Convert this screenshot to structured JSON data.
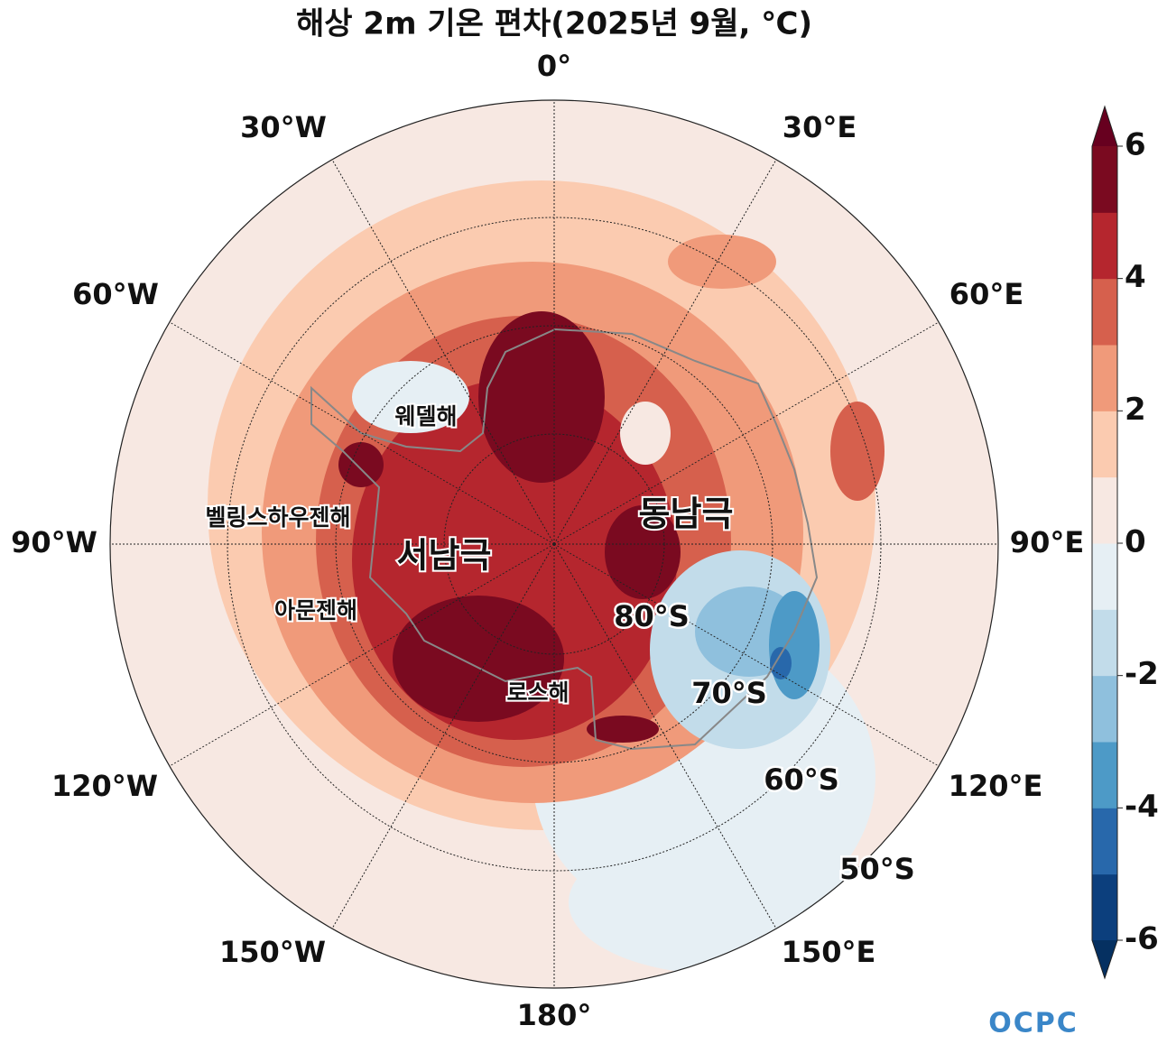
{
  "chart_data": {
    "type": "polar-contour",
    "title": "해상 2m 기온 편차(2025년 9월, ℃)",
    "lon_labels": [
      "0°",
      "30°E",
      "60°E",
      "90°E",
      "120°E",
      "150°E",
      "180°",
      "150°W",
      "120°W",
      "90°W",
      "60°W",
      "30°W"
    ],
    "lat_labels": [
      "80°S",
      "70°S",
      "60°S",
      "50°S"
    ],
    "region_labels": [
      "웨델해",
      "벨링스하우젠해",
      "서남극",
      "아문젠해",
      "로스해",
      "동남극"
    ],
    "colorbar": {
      "levels": [
        -6,
        -5,
        -4,
        -3,
        -2,
        -1,
        0,
        1,
        2,
        3,
        4,
        5,
        6
      ],
      "colors": [
        "#0c3f7d",
        "#2868ab",
        "#4d9ac7",
        "#8fc0dd",
        "#c2dcea",
        "#e6eff4",
        "#f7e8e2",
        "#fbcbb0",
        "#f09a7a",
        "#d6604d",
        "#b5262e",
        "#7a0a20"
      ],
      "extend_colors": [
        "#053061",
        "#67001f"
      ],
      "ticks": [
        -6,
        -4,
        -2,
        0,
        2,
        4,
        6
      ]
    }
  },
  "logo": "OCPC"
}
